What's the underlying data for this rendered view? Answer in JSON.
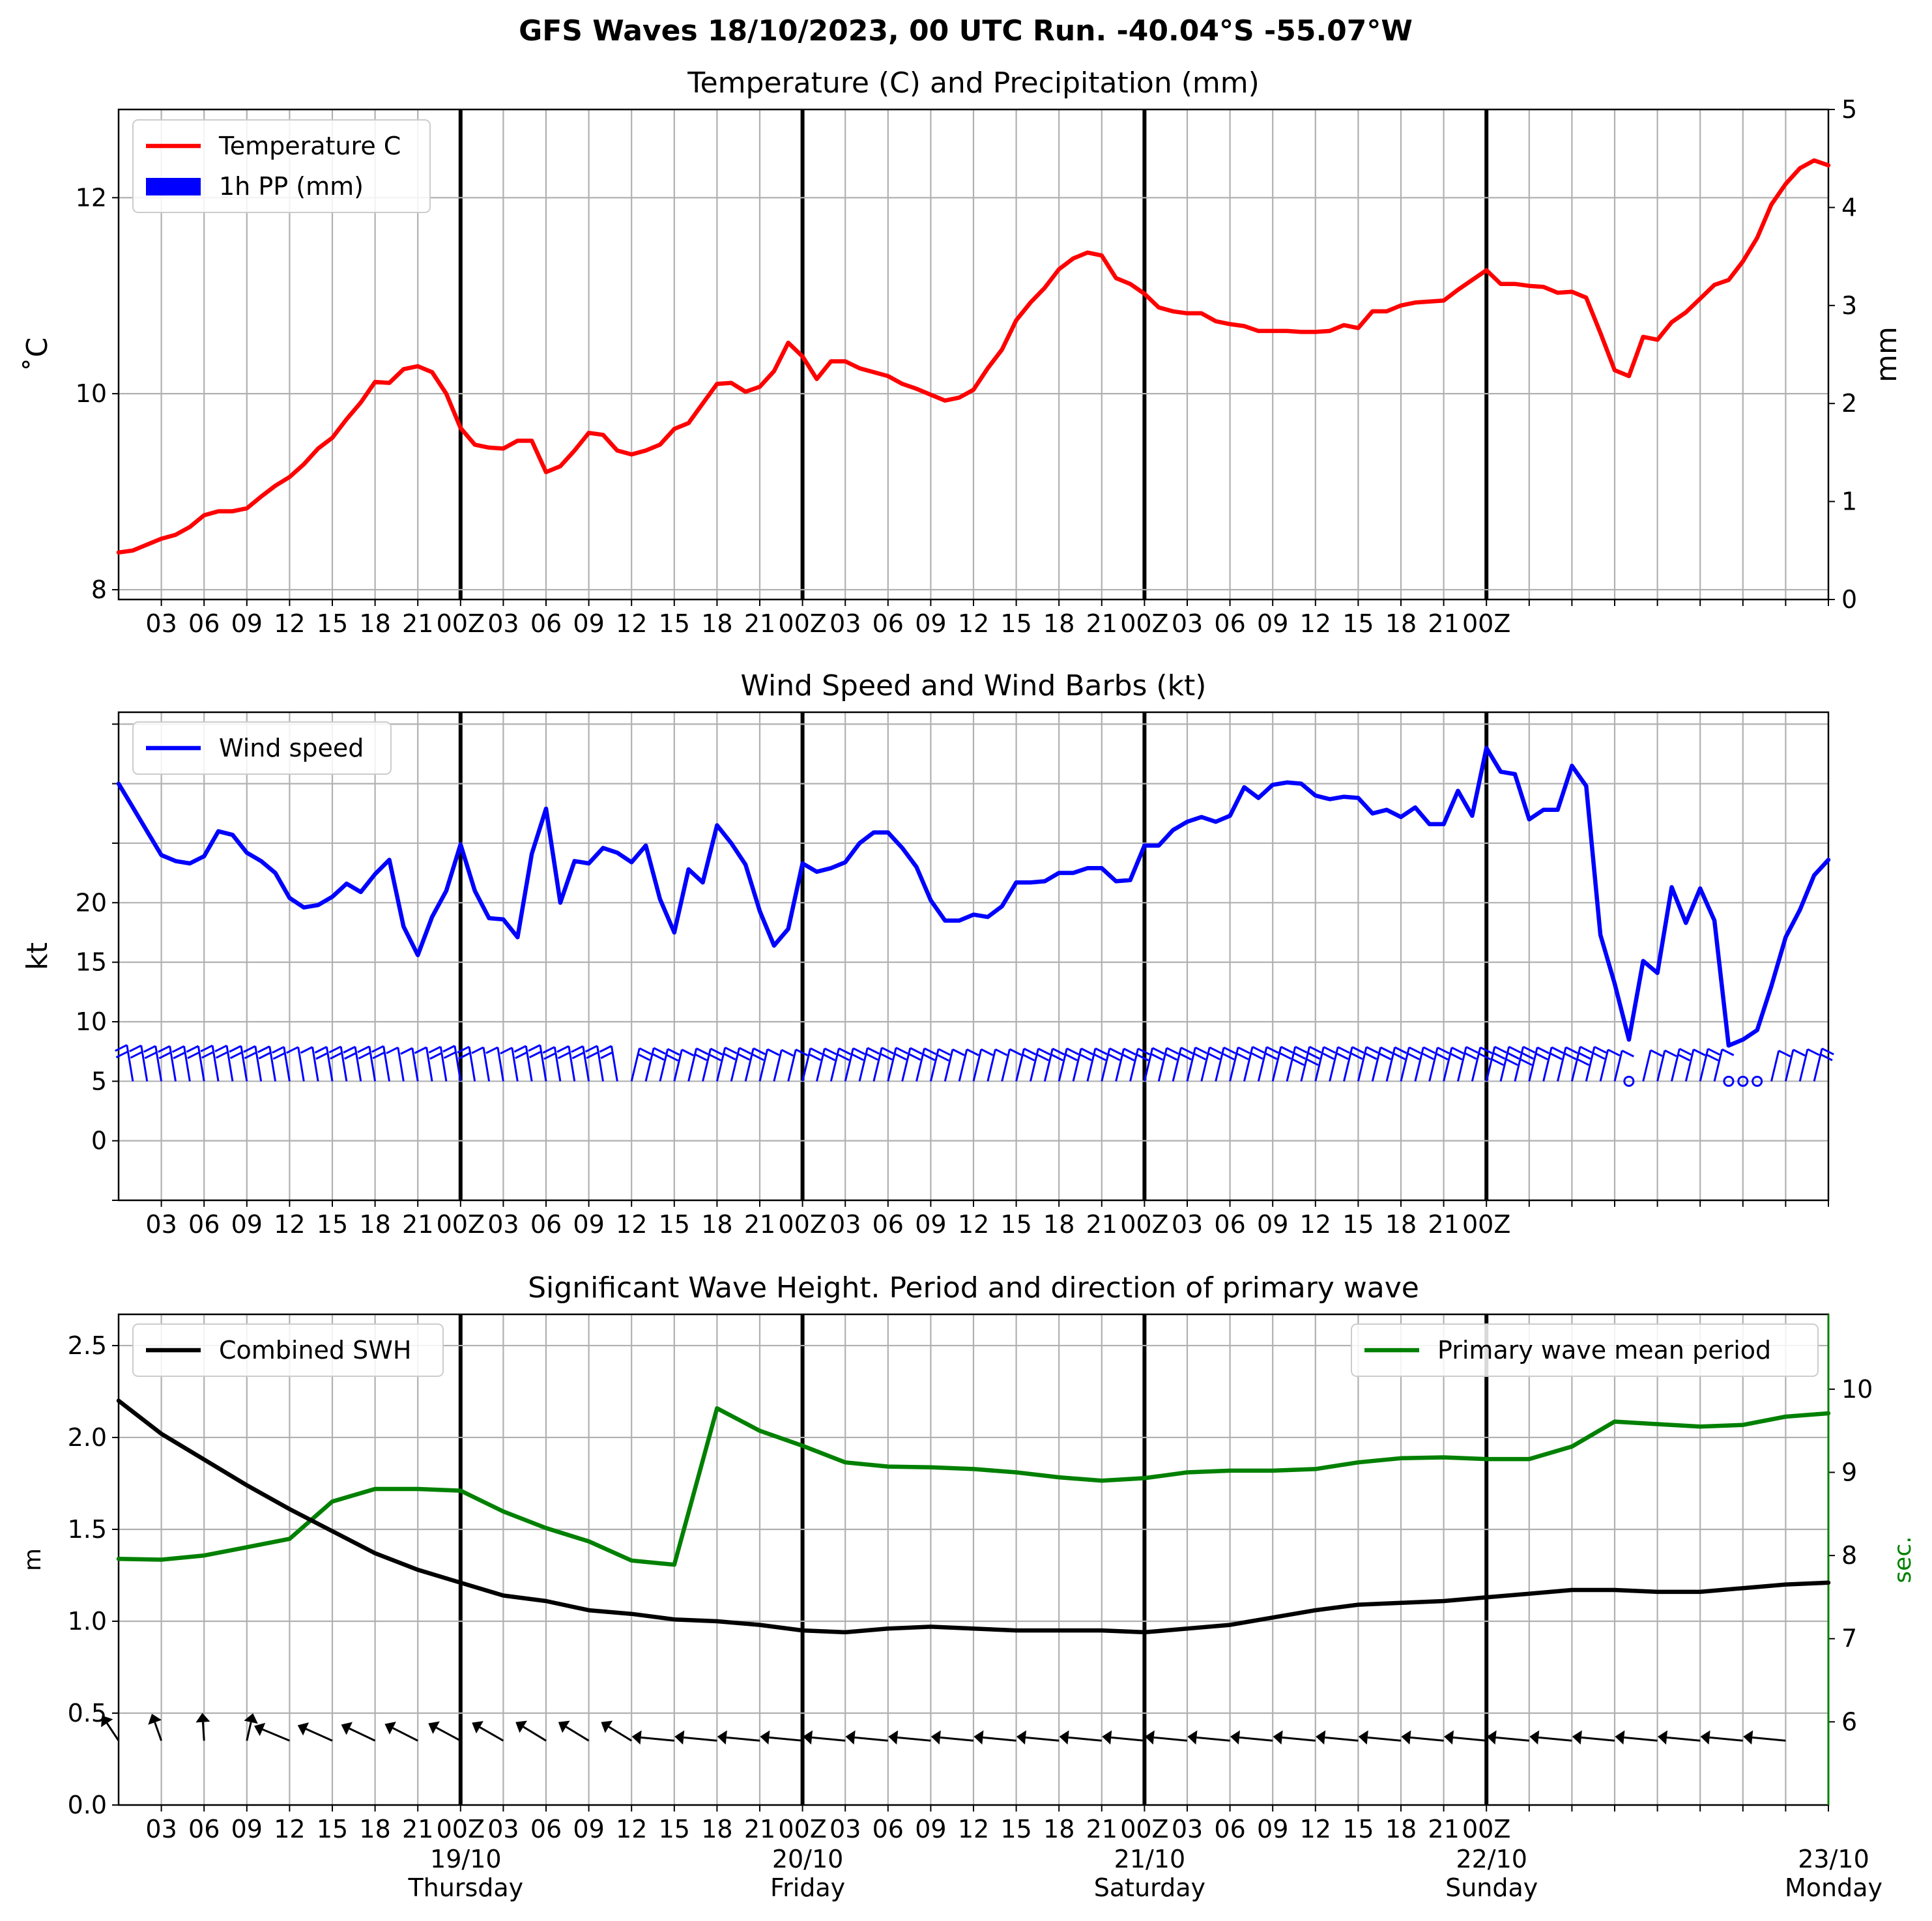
{
  "figure": {
    "title": "GFS Waves 18/10/2023, 00 UTC Run. -40.04°S -55.07°W"
  },
  "colors": {
    "temperature": "#ff0000",
    "precipitation": "#0000ff",
    "wind": "#0000ff",
    "swh": "#000000",
    "period": "#008000",
    "grid": "#b0b0b0"
  },
  "time_axis": {
    "hour_ticks": [
      "03",
      "06",
      "09",
      "12",
      "15",
      "18",
      "21",
      "00Z",
      "03",
      "06",
      "09",
      "12",
      "15",
      "18",
      "21",
      "00Z",
      "03",
      "06",
      "09",
      "12",
      "15",
      "18",
      "21",
      "00Z",
      "03",
      "06",
      "09",
      "12",
      "15",
      "18",
      "21",
      "00Z"
    ],
    "day_labels": [
      {
        "date": "19/10",
        "weekday": "Thursday"
      },
      {
        "date": "20/10",
        "weekday": "Friday"
      },
      {
        "date": "21/10",
        "weekday": "Saturday"
      },
      {
        "date": "22/10",
        "weekday": "Sunday"
      },
      {
        "date": "23/10",
        "weekday": "Monday"
      }
    ]
  },
  "chart_data": [
    {
      "type": "line",
      "title": "Temperature (C) and Precipitation (mm)",
      "ylabel": "$^\\circ$C",
      "ylabel_display": "˚C",
      "y2label": "mm",
      "x_units": "hours since 18/10/2023 00 UTC",
      "xlim": [
        0,
        120
      ],
      "ylim": [
        7.9,
        12.9
      ],
      "y_ticks": [
        8,
        10,
        12
      ],
      "y2lim": [
        0,
        5
      ],
      "y2_ticks": [
        0,
        1,
        2,
        3,
        4,
        5
      ],
      "grid": true,
      "legend": "upper-left",
      "legend_entries": [
        "Temperature C",
        "1h PP (mm)"
      ],
      "series": [
        {
          "name": "Temperature C",
          "x": [
            0,
            1,
            2,
            3,
            4,
            5,
            6,
            7,
            8,
            9,
            10,
            11,
            12,
            13,
            14,
            15,
            16,
            17,
            18,
            19,
            20,
            21,
            22,
            23,
            24,
            25,
            26,
            27,
            28,
            29,
            30,
            31,
            32,
            33,
            34,
            35,
            36,
            37,
            38,
            39,
            40,
            41,
            42,
            43,
            44,
            45,
            46,
            47,
            48,
            49,
            50,
            51,
            52,
            53,
            54,
            55,
            56,
            57,
            58,
            59,
            60,
            61,
            62,
            63,
            64,
            65,
            66,
            67,
            68,
            69,
            70,
            71,
            72,
            73,
            74,
            75,
            76,
            77,
            78,
            79,
            80,
            81,
            82,
            83,
            84,
            85,
            86,
            87,
            88,
            89,
            90,
            91,
            92,
            93,
            94,
            95,
            96,
            97,
            98,
            99,
            100,
            101,
            102,
            103,
            104,
            105,
            106,
            107,
            108,
            109,
            110,
            111,
            112,
            113,
            114,
            115,
            116,
            117,
            118,
            119,
            120
          ],
          "y": [
            8.38,
            8.4,
            8.46,
            8.52,
            8.56,
            8.64,
            8.76,
            8.8,
            8.8,
            8.83,
            8.95,
            9.06,
            9.15,
            9.28,
            9.44,
            9.55,
            9.74,
            9.91,
            10.12,
            10.11,
            10.25,
            10.28,
            10.22,
            10.0,
            9.65,
            9.48,
            9.45,
            9.44,
            9.52,
            9.52,
            9.2,
            9.26,
            9.42,
            9.6,
            9.58,
            9.42,
            9.38,
            9.42,
            9.48,
            9.64,
            9.7,
            9.9,
            10.1,
            10.11,
            10.02,
            10.07,
            10.23,
            10.52,
            10.38,
            10.15,
            10.33,
            10.33,
            10.26,
            10.22,
            10.18,
            10.1,
            10.05,
            9.99,
            9.93,
            9.96,
            10.04,
            10.26,
            10.45,
            10.75,
            10.93,
            11.08,
            11.27,
            11.38,
            11.44,
            11.41,
            11.18,
            11.12,
            11.02,
            10.88,
            10.84,
            10.82,
            10.82,
            10.74,
            10.71,
            10.69,
            10.64,
            10.64,
            10.64,
            10.63,
            10.63,
            10.64,
            10.7,
            10.67,
            10.84,
            10.84,
            10.9,
            10.93,
            10.94,
            10.95,
            11.06,
            11.16,
            11.26,
            11.12,
            11.12,
            11.1,
            11.09,
            11.03,
            11.04,
            10.98,
            10.62,
            10.24,
            10.18,
            10.58,
            10.55,
            10.73,
            10.83,
            10.97,
            11.11,
            11.16,
            11.35,
            11.59,
            11.93,
            12.14,
            12.3,
            12.38,
            12.33
          ]
        },
        {
          "name": "1h PP (mm)",
          "type": "bar",
          "values": []
        }
      ]
    },
    {
      "type": "line",
      "title": "Wind Speed and Wind Barbs (kt)",
      "ylabel": "kt",
      "x_units": "hours since 18/10/2023 00 UTC",
      "xlim": [
        0,
        120
      ],
      "ylim": [
        -5,
        36
      ],
      "y_ticks": [
        0,
        5,
        10,
        15,
        20
      ],
      "grid": true,
      "legend": "upper-left",
      "legend_entries": [
        "Wind speed"
      ],
      "barb_level": 5,
      "series": [
        {
          "name": "Wind speed",
          "x": [
            0,
            1,
            2,
            3,
            4,
            5,
            6,
            7,
            8,
            9,
            10,
            11,
            12,
            13,
            14,
            15,
            16,
            17,
            18,
            19,
            20,
            21,
            22,
            23,
            24,
            25,
            26,
            27,
            28,
            29,
            30,
            31,
            32,
            33,
            34,
            35,
            36,
            37,
            38,
            39,
            40,
            41,
            42,
            43,
            44,
            45,
            46,
            47,
            48,
            49,
            50,
            51,
            52,
            53,
            54,
            55,
            56,
            57,
            58,
            59,
            60,
            61,
            62,
            63,
            64,
            65,
            66,
            67,
            68,
            69,
            70,
            71,
            72,
            73,
            74,
            75,
            76,
            77,
            78,
            79,
            80,
            81,
            82,
            83,
            84,
            85,
            86,
            87,
            88,
            89,
            90,
            91,
            92,
            93,
            94,
            95,
            96,
            97,
            98,
            99,
            100,
            101,
            102,
            103,
            104,
            105,
            106,
            107,
            108,
            109,
            110,
            111,
            112,
            113,
            114,
            115,
            116,
            117,
            118,
            119,
            120
          ],
          "y": [
            30.0,
            28.0,
            26.0,
            24.0,
            23.5,
            23.3,
            23.9,
            26.0,
            25.7,
            24.2,
            23.5,
            22.5,
            20.4,
            19.6,
            19.8,
            20.5,
            21.6,
            20.9,
            22.4,
            23.6,
            18.0,
            15.6,
            18.8,
            21.0,
            24.9,
            21.0,
            18.7,
            18.6,
            17.1,
            24.1,
            27.9,
            20.0,
            23.5,
            23.3,
            24.6,
            24.2,
            23.4,
            24.8,
            20.3,
            17.5,
            22.8,
            21.7,
            26.5,
            25.0,
            23.2,
            19.3,
            16.4,
            17.8,
            23.3,
            22.6,
            22.9,
            23.4,
            25.0,
            25.9,
            25.9,
            24.6,
            23.0,
            20.2,
            18.5,
            18.5,
            19.0,
            18.8,
            19.7,
            21.7,
            21.7,
            21.8,
            22.5,
            22.5,
            22.9,
            22.9,
            21.8,
            21.9,
            24.8,
            24.8,
            26.1,
            26.8,
            27.2,
            26.8,
            27.3,
            29.7,
            28.8,
            29.9,
            30.1,
            30.0,
            29.0,
            28.7,
            28.9,
            28.8,
            27.5,
            27.8,
            27.2,
            28.0,
            26.6,
            26.6,
            29.4,
            27.3,
            33.0,
            31.0,
            30.8,
            27.0,
            27.8,
            27.8,
            31.5,
            29.8,
            17.3,
            13.2,
            8.5,
            15.1,
            14.1,
            21.3,
            18.3,
            21.2,
            18.5,
            8.0,
            8.5,
            9.3,
            13.0,
            17.1,
            19.4,
            22.3,
            23.6
          ]
        }
      ]
    },
    {
      "type": "line",
      "title": "Significant Wave Height. Period and direction of primary wave",
      "ylabel": "m",
      "y2label": "sec.",
      "x_units": "hours since 18/10/2023 00 UTC",
      "xlim": [
        0,
        120
      ],
      "ylim": [
        0,
        2.67
      ],
      "y_ticks": [
        0.0,
        0.5,
        1.0,
        1.5,
        2.0,
        2.5
      ],
      "y2lim": [
        5.0,
        10.9
      ],
      "y2_ticks": [
        6,
        7,
        8,
        9,
        10
      ],
      "grid": true,
      "legend_left": "upper-left",
      "legend_right": "upper-right",
      "legend_entries": [
        "Combined SWH",
        "Primary wave mean period"
      ],
      "arrow_level": 0.35,
      "series": [
        {
          "name": "Combined SWH",
          "x": [
            0,
            3,
            6,
            9,
            12,
            15,
            18,
            21,
            24,
            27,
            30,
            33,
            36,
            39,
            42,
            45,
            48,
            51,
            54,
            57,
            60,
            63,
            66,
            69,
            72,
            75,
            78,
            81,
            84,
            87,
            90,
            93,
            96,
            99,
            102,
            105,
            108,
            111,
            114,
            117,
            120
          ],
          "y": [
            2.2,
            2.02,
            1.88,
            1.74,
            1.61,
            1.49,
            1.37,
            1.28,
            1.21,
            1.14,
            1.11,
            1.06,
            1.04,
            1.01,
            1.0,
            0.98,
            0.95,
            0.94,
            0.96,
            0.97,
            0.96,
            0.95,
            0.95,
            0.95,
            0.94,
            0.96,
            0.98,
            1.02,
            1.06,
            1.09,
            1.1,
            1.11,
            1.13,
            1.15,
            1.17,
            1.17,
            1.16,
            1.16,
            1.18,
            1.2,
            1.21
          ]
        },
        {
          "name": "Primary wave mean period",
          "x": [
            0,
            3,
            6,
            9,
            12,
            15,
            18,
            21,
            24,
            27,
            30,
            33,
            36,
            39,
            42,
            45,
            48,
            51,
            54,
            57,
            60,
            63,
            66,
            69,
            72,
            75,
            78,
            81,
            84,
            87,
            90,
            93,
            96,
            99,
            102,
            105,
            108,
            111,
            114,
            117,
            120
          ],
          "y": [
            7.96,
            7.95,
            8.0,
            8.1,
            8.2,
            8.65,
            8.8,
            8.8,
            8.78,
            8.53,
            8.33,
            8.17,
            7.94,
            7.89,
            9.77,
            9.5,
            9.32,
            9.12,
            9.07,
            9.06,
            9.04,
            9.0,
            8.94,
            8.9,
            8.93,
            9.0,
            9.02,
            9.02,
            9.04,
            9.12,
            9.17,
            9.18,
            9.16,
            9.16,
            9.31,
            9.61,
            9.58,
            9.55,
            9.57,
            9.67,
            9.71
          ]
        }
      ]
    }
  ]
}
